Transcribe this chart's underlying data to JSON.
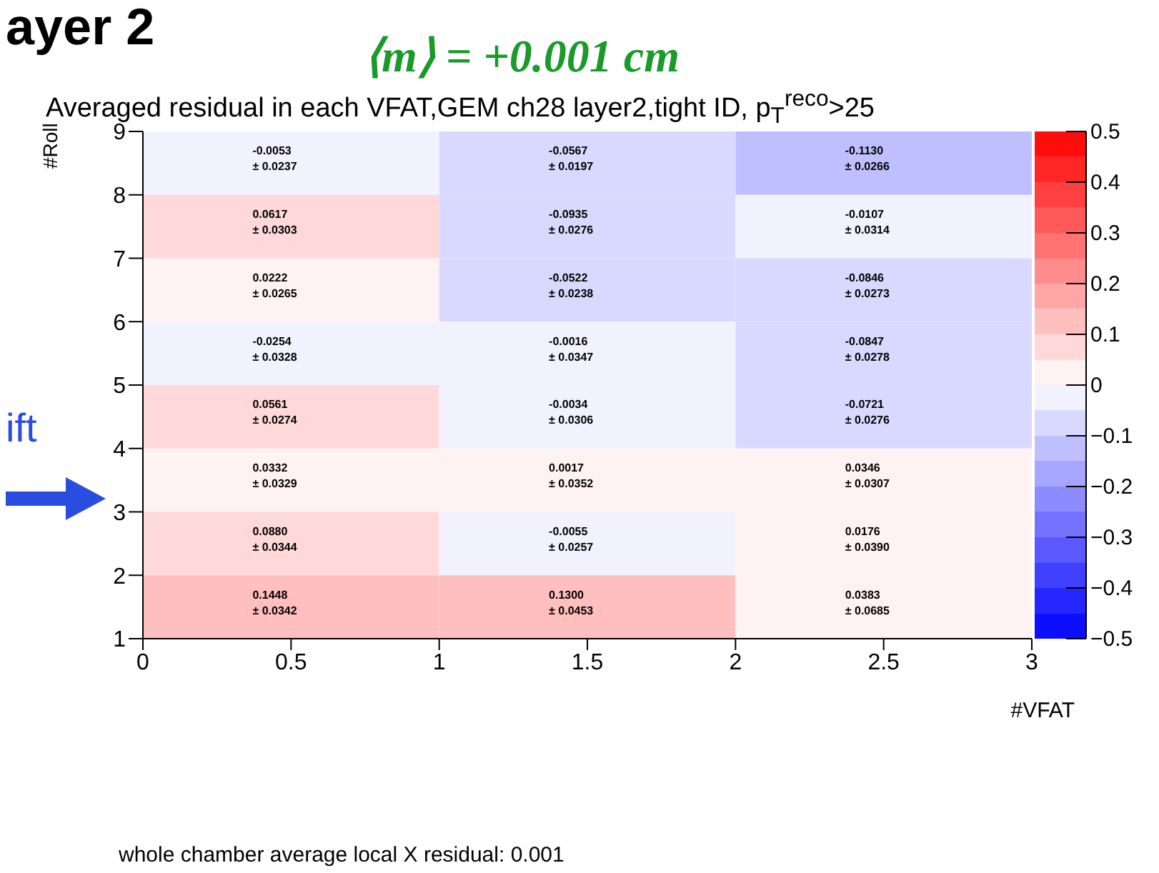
{
  "chart_data": {
    "type": "heatmap",
    "title": "Averaged residual in each VFAT,GEM ch28 layer2,tight ID, p$_{T}$$^{reco}$>25",
    "xlabel": "#VFAT",
    "ylabel": "#Roll",
    "annotations": [
      "ayer 2",
      "⟨m⟩ = +0.001 cm",
      "ift",
      "whole chamber average local X residual: 0.001"
    ],
    "xlim": [
      0,
      3
    ],
    "xticks": [
      0,
      0.5,
      1,
      1.5,
      2,
      2.5,
      3
    ],
    "ylim": [
      1,
      9
    ],
    "yticks": [
      1,
      2,
      3,
      4,
      5,
      6,
      7,
      8,
      9
    ],
    "cells": [
      [
        -0.0053,
        -0.0567,
        -0.113
      ],
      [
        0.0617,
        -0.0935,
        -0.0107
      ],
      [
        0.0222,
        -0.0522,
        -0.0846
      ],
      [
        -0.0254,
        -0.0016,
        -0.0847
      ],
      [
        0.0561,
        -0.0034,
        -0.0721
      ],
      [
        0.0332,
        0.0017,
        0.0346
      ],
      [
        0.088,
        -0.0055,
        0.0176
      ],
      [
        0.1448,
        0.13,
        0.0383
      ]
    ],
    "cell_labels": [
      [
        "-0.0053\n± 0.0237",
        "-0.0567\n± 0.0197",
        "-0.1130\n± 0.0266"
      ],
      [
        "0.0617\n± 0.0303",
        "-0.0935\n± 0.0276",
        "-0.0107\n± 0.0314"
      ],
      [
        "0.0222\n± 0.0265",
        "-0.0522\n± 0.0238",
        "-0.0846\n± 0.0273"
      ],
      [
        "-0.0254\n± 0.0328",
        "-0.0016\n± 0.0347",
        "-0.0847\n± 0.0278"
      ],
      [
        "0.0561\n± 0.0274",
        "-0.0034\n± 0.0306",
        "-0.0721\n± 0.0276"
      ],
      [
        "0.0332\n± 0.0329",
        "0.0017\n± 0.0352",
        "0.0346\n± 0.0307"
      ],
      [
        "0.0880\n± 0.0344",
        "-0.0055\n± 0.0257",
        "0.0176\n± 0.0390"
      ],
      [
        "0.1448\n± 0.0342",
        "0.1300\n± 0.0453",
        "0.0383\n± 0.0685"
      ]
    ],
    "clim": [
      -0.5,
      0.5
    ],
    "cticks": [
      {
        "value": -0.5,
        "label": "−0.5"
      },
      {
        "value": -0.4,
        "label": "−0.4"
      },
      {
        "value": -0.3,
        "label": "−0.3"
      },
      {
        "value": -0.2,
        "label": "−0.2"
      },
      {
        "value": -0.1,
        "label": "−0.1"
      },
      0,
      0.1,
      0.2,
      0.3,
      0.4,
      0.5
    ]
  }
}
